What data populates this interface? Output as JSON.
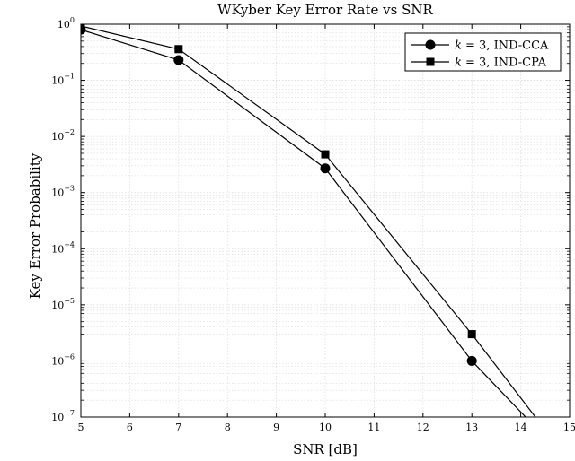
{
  "chart_data": {
    "type": "line",
    "title": "WKyber Key Error Rate vs SNR",
    "xlabel": "SNR [dB]",
    "ylabel": "Key Error Probability",
    "xlim": [
      5,
      15
    ],
    "ylim": [
      1e-07,
      1
    ],
    "yscale": "log",
    "grid": true,
    "legend_position": "top-right",
    "x_ticks": [
      "5",
      "6",
      "7",
      "8",
      "9",
      "10",
      "11",
      "12",
      "13",
      "14",
      "15"
    ],
    "y_ticks": [
      {
        "base": "10",
        "exp": "0"
      },
      {
        "base": "10",
        "exp": "−1"
      },
      {
        "base": "10",
        "exp": "−2"
      },
      {
        "base": "10",
        "exp": "−3"
      },
      {
        "base": "10",
        "exp": "−4"
      },
      {
        "base": "10",
        "exp": "−5"
      },
      {
        "base": "10",
        "exp": "−6"
      },
      {
        "base": "10",
        "exp": "−7"
      }
    ],
    "series": [
      {
        "name": "k = 3, IND-CCA",
        "legend_var": "k",
        "legend_rest": " = 3, IND-CCA",
        "marker": "circle",
        "x": [
          5,
          7,
          10,
          13,
          14.1
        ],
        "y": [
          0.8,
          0.23,
          0.0027,
          1e-06,
          1e-07
        ]
      },
      {
        "name": "k = 3, IND-CPA",
        "legend_var": "k",
        "legend_rest": " = 3, IND-CPA",
        "marker": "square",
        "x": [
          5,
          7,
          10,
          13,
          14.3
        ],
        "y": [
          0.93,
          0.36,
          0.0048,
          3e-06,
          1e-07
        ]
      }
    ],
    "marker_x": [
      [
        5,
        7,
        10,
        13
      ],
      [
        5,
        7,
        10,
        13
      ]
    ],
    "colors": {
      "line": "#000000",
      "grid": "#d9d9d9",
      "frame": "#000000"
    }
  }
}
